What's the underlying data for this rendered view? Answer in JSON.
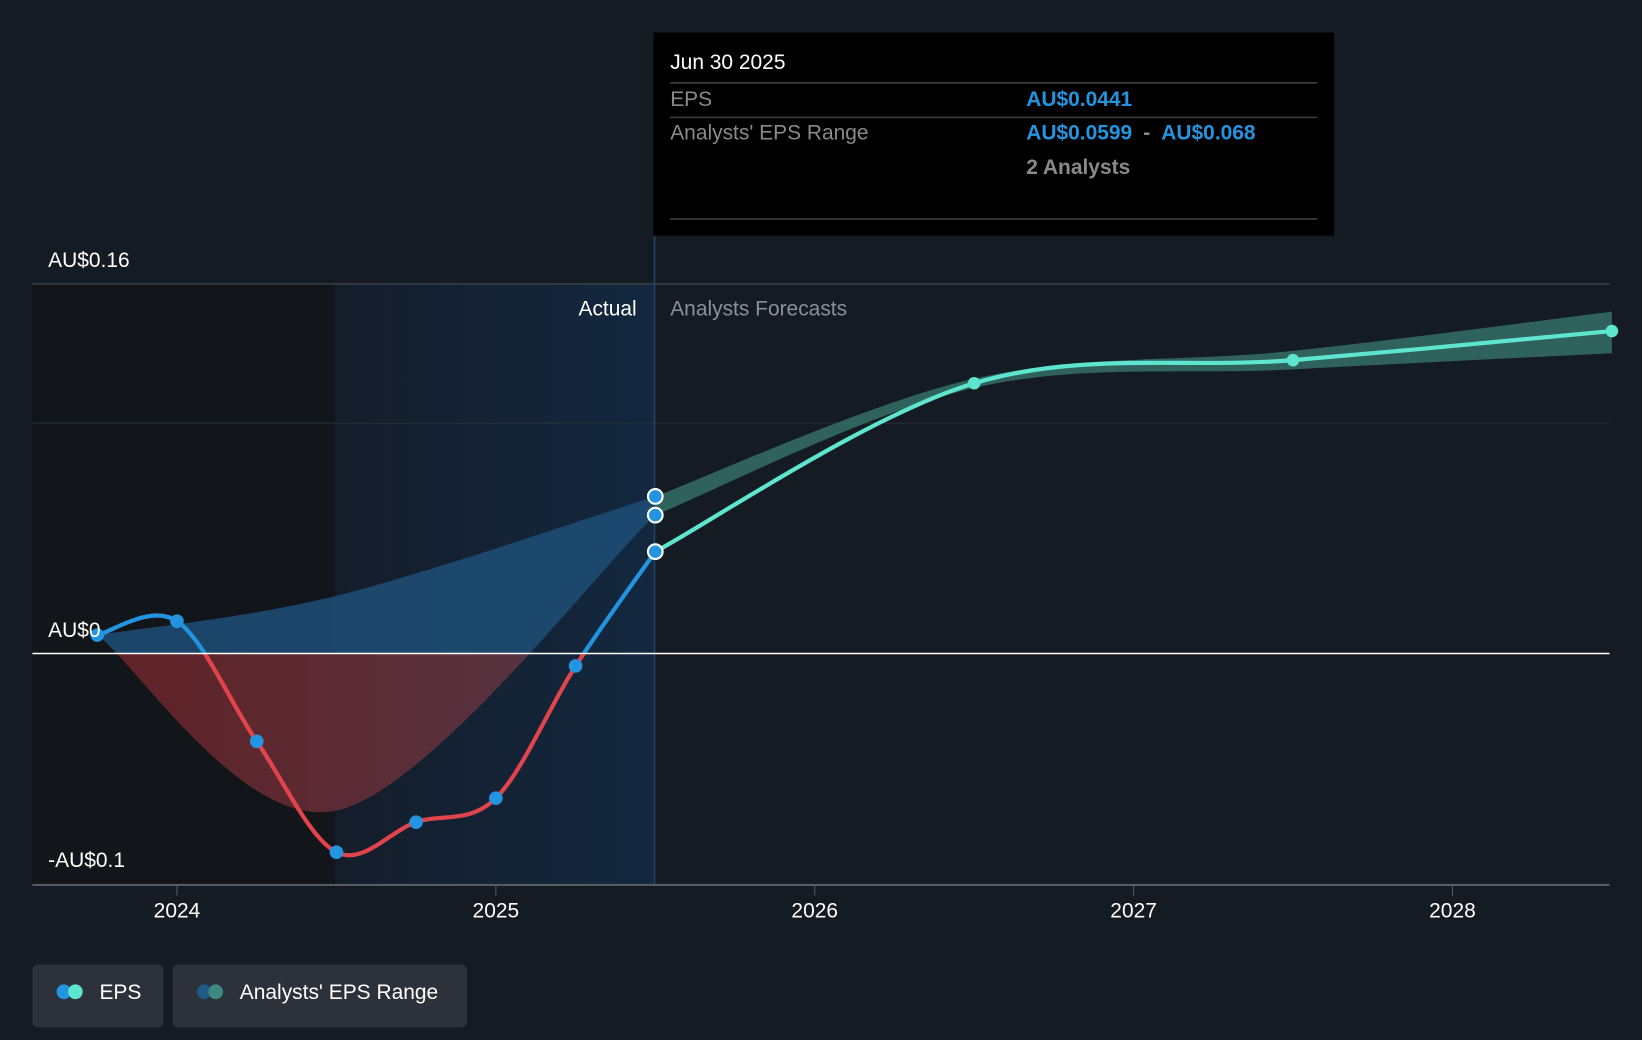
{
  "chart_data": {
    "type": "line",
    "title": "",
    "xlabel": "",
    "ylabel": "",
    "ylim": [
      -0.1,
      0.16
    ],
    "xlim": [
      2023.55,
      2028.5
    ],
    "y_tick_labels": [
      "AU$0.16",
      "AU$0",
      "-AU$0.1"
    ],
    "y_ticks": [
      0.16,
      0,
      -0.1
    ],
    "x_ticks": [
      2024,
      2025,
      2026,
      2027,
      2028
    ],
    "x_tick_labels": [
      "2024",
      "2025",
      "2026",
      "2027",
      "2028"
    ],
    "grid": true,
    "section_labels": {
      "actual": "Actual",
      "forecast": "Analysts Forecasts"
    },
    "actual_eps": {
      "name": "EPS",
      "x": [
        2023.75,
        2024.0,
        2024.25,
        2024.5,
        2024.75,
        2025.0,
        2025.25,
        2025.5
      ],
      "y": [
        0.008,
        0.014,
        -0.038,
        -0.086,
        -0.073,
        -0.0626,
        -0.0054,
        0.0441
      ]
    },
    "forecast_eps": {
      "name": "EPS",
      "x": [
        2025.5,
        2026.5,
        2027.5,
        2028.5
      ],
      "y": [
        0.0441,
        0.117,
        0.127,
        0.1396
      ]
    },
    "past_range": {
      "name": "Analysts' EPS Range",
      "x": [
        2023.75,
        2024.5,
        2025.5
      ],
      "low": [
        0.008,
        -0.068,
        0.0599
      ],
      "high": [
        0.008,
        0.025,
        0.068
      ]
    },
    "forecast_range": {
      "name": "Analysts' EPS Range",
      "x": [
        2025.5,
        2026.5,
        2027.5,
        2028.5
      ],
      "low": [
        0.0599,
        0.115,
        0.123,
        0.13
      ],
      "high": [
        0.068,
        0.119,
        0.131,
        0.148
      ]
    },
    "colors": {
      "eps_actual": "#2394df",
      "eps_negative": "#e2444b",
      "eps_forecast": "#5ee5cf",
      "range_past": "#1f4f78",
      "range_forecast": "#3b7f76"
    }
  },
  "tooltip": {
    "date": "Jun 30 2025",
    "eps_label": "EPS",
    "eps_value": "AU$0.0441",
    "range_label": "Analysts' EPS Range",
    "range_low": "AU$0.0599",
    "range_sep": "-",
    "range_high": "AU$0.068",
    "analysts": "2 Analysts"
  },
  "legend": [
    {
      "label": "EPS",
      "colors": [
        "#2394df",
        "#5ee5cf"
      ]
    },
    {
      "label": "Analysts' EPS Range",
      "colors": [
        "#1f5a84",
        "#3e8a80"
      ]
    }
  ]
}
